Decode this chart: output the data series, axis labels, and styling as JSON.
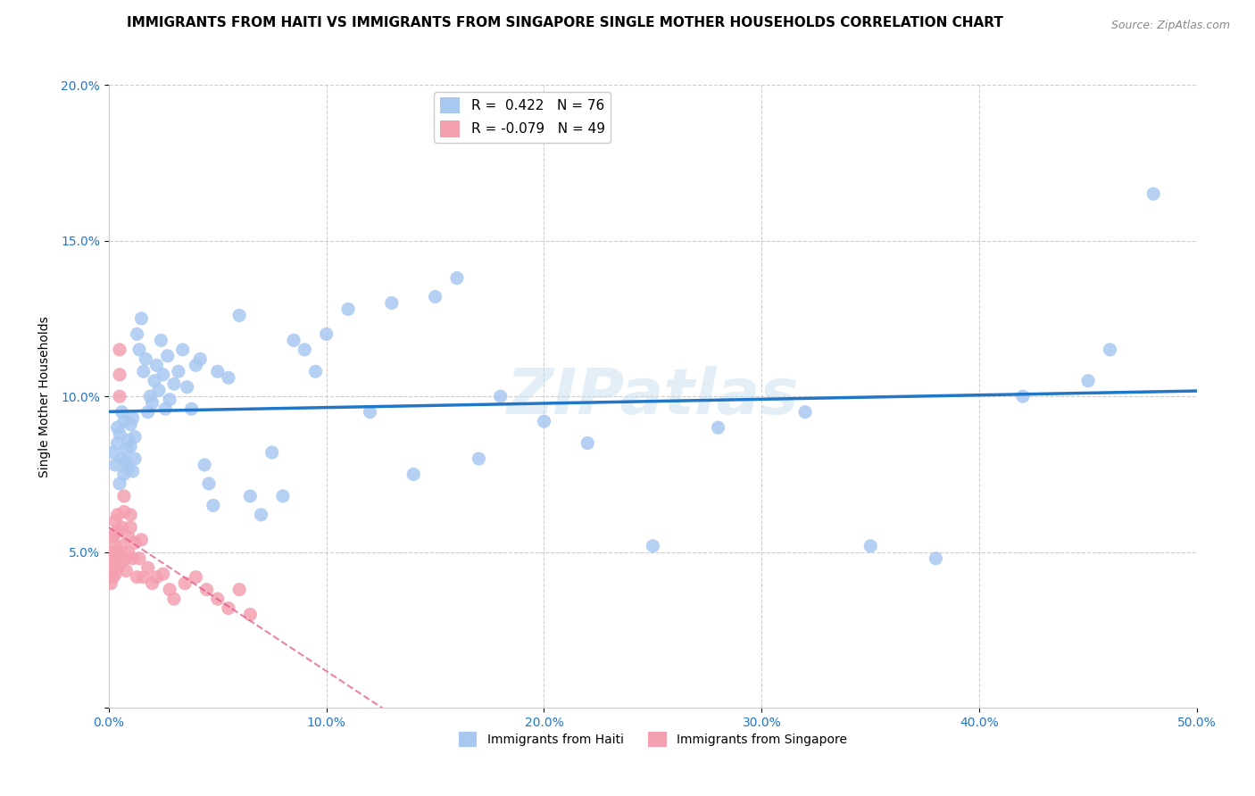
{
  "title": "IMMIGRANTS FROM HAITI VS IMMIGRANTS FROM SINGAPORE SINGLE MOTHER HOUSEHOLDS CORRELATION CHART",
  "source": "Source: ZipAtlas.com",
  "xlabel": "",
  "ylabel": "Single Mother Households",
  "xlim": [
    0.0,
    0.5
  ],
  "ylim": [
    0.0,
    0.2
  ],
  "xticks": [
    0.0,
    0.1,
    0.2,
    0.3,
    0.4,
    0.5
  ],
  "yticks": [
    0.0,
    0.05,
    0.1,
    0.15,
    0.2
  ],
  "xticklabels": [
    "0.0%",
    "10.0%",
    "20.0%",
    "30.0%",
    "40.0%",
    "50.0%"
  ],
  "yticklabels": [
    "",
    "5.0%",
    "10.0%",
    "15.0%",
    "20.0%"
  ],
  "haiti_R": 0.422,
  "haiti_N": 76,
  "singapore_R": -0.079,
  "singapore_N": 49,
  "haiti_color": "#a8c8f0",
  "haiti_line_color": "#2176c7",
  "singapore_color": "#f4a0b0",
  "singapore_line_color": "#e05080",
  "watermark": "ZIPatlas",
  "title_fontsize": 11,
  "axis_label_fontsize": 10,
  "tick_fontsize": 10,
  "legend_fontsize": 11,
  "haiti_x": [
    0.002,
    0.003,
    0.004,
    0.004,
    0.005,
    0.005,
    0.006,
    0.006,
    0.007,
    0.007,
    0.008,
    0.008,
    0.009,
    0.009,
    0.01,
    0.01,
    0.011,
    0.011,
    0.012,
    0.012,
    0.013,
    0.014,
    0.015,
    0.016,
    0.017,
    0.018,
    0.019,
    0.02,
    0.021,
    0.022,
    0.023,
    0.024,
    0.025,
    0.026,
    0.027,
    0.028,
    0.03,
    0.032,
    0.034,
    0.036,
    0.038,
    0.04,
    0.042,
    0.044,
    0.046,
    0.048,
    0.05,
    0.055,
    0.06,
    0.065,
    0.07,
    0.075,
    0.08,
    0.085,
    0.09,
    0.095,
    0.1,
    0.11,
    0.12,
    0.13,
    0.14,
    0.15,
    0.16,
    0.17,
    0.18,
    0.2,
    0.22,
    0.25,
    0.28,
    0.32,
    0.35,
    0.38,
    0.42,
    0.45,
    0.46,
    0.48
  ],
  "haiti_y": [
    0.082,
    0.078,
    0.085,
    0.09,
    0.072,
    0.088,
    0.095,
    0.08,
    0.075,
    0.092,
    0.083,
    0.079,
    0.086,
    0.077,
    0.091,
    0.084,
    0.076,
    0.093,
    0.08,
    0.087,
    0.12,
    0.115,
    0.125,
    0.108,
    0.112,
    0.095,
    0.1,
    0.098,
    0.105,
    0.11,
    0.102,
    0.118,
    0.107,
    0.096,
    0.113,
    0.099,
    0.104,
    0.108,
    0.115,
    0.103,
    0.096,
    0.11,
    0.112,
    0.078,
    0.072,
    0.065,
    0.108,
    0.106,
    0.126,
    0.068,
    0.062,
    0.082,
    0.068,
    0.118,
    0.115,
    0.108,
    0.12,
    0.128,
    0.095,
    0.13,
    0.075,
    0.132,
    0.138,
    0.08,
    0.1,
    0.092,
    0.085,
    0.052,
    0.09,
    0.095,
    0.052,
    0.048,
    0.1,
    0.105,
    0.115,
    0.165
  ],
  "singapore_x": [
    0.001,
    0.001,
    0.001,
    0.002,
    0.002,
    0.002,
    0.002,
    0.003,
    0.003,
    0.003,
    0.003,
    0.003,
    0.004,
    0.004,
    0.004,
    0.004,
    0.005,
    0.005,
    0.005,
    0.006,
    0.006,
    0.006,
    0.007,
    0.007,
    0.008,
    0.008,
    0.009,
    0.009,
    0.01,
    0.01,
    0.011,
    0.012,
    0.013,
    0.014,
    0.015,
    0.016,
    0.018,
    0.02,
    0.022,
    0.025,
    0.028,
    0.03,
    0.035,
    0.04,
    0.045,
    0.05,
    0.055,
    0.06,
    0.065
  ],
  "singapore_y": [
    0.048,
    0.044,
    0.04,
    0.055,
    0.05,
    0.046,
    0.042,
    0.06,
    0.056,
    0.052,
    0.048,
    0.043,
    0.062,
    0.057,
    0.05,
    0.045,
    0.1,
    0.107,
    0.115,
    0.058,
    0.052,
    0.047,
    0.068,
    0.063,
    0.048,
    0.044,
    0.055,
    0.05,
    0.062,
    0.058,
    0.048,
    0.053,
    0.042,
    0.048,
    0.054,
    0.042,
    0.045,
    0.04,
    0.042,
    0.043,
    0.038,
    0.035,
    0.04,
    0.042,
    0.038,
    0.035,
    0.032,
    0.038,
    0.03
  ]
}
